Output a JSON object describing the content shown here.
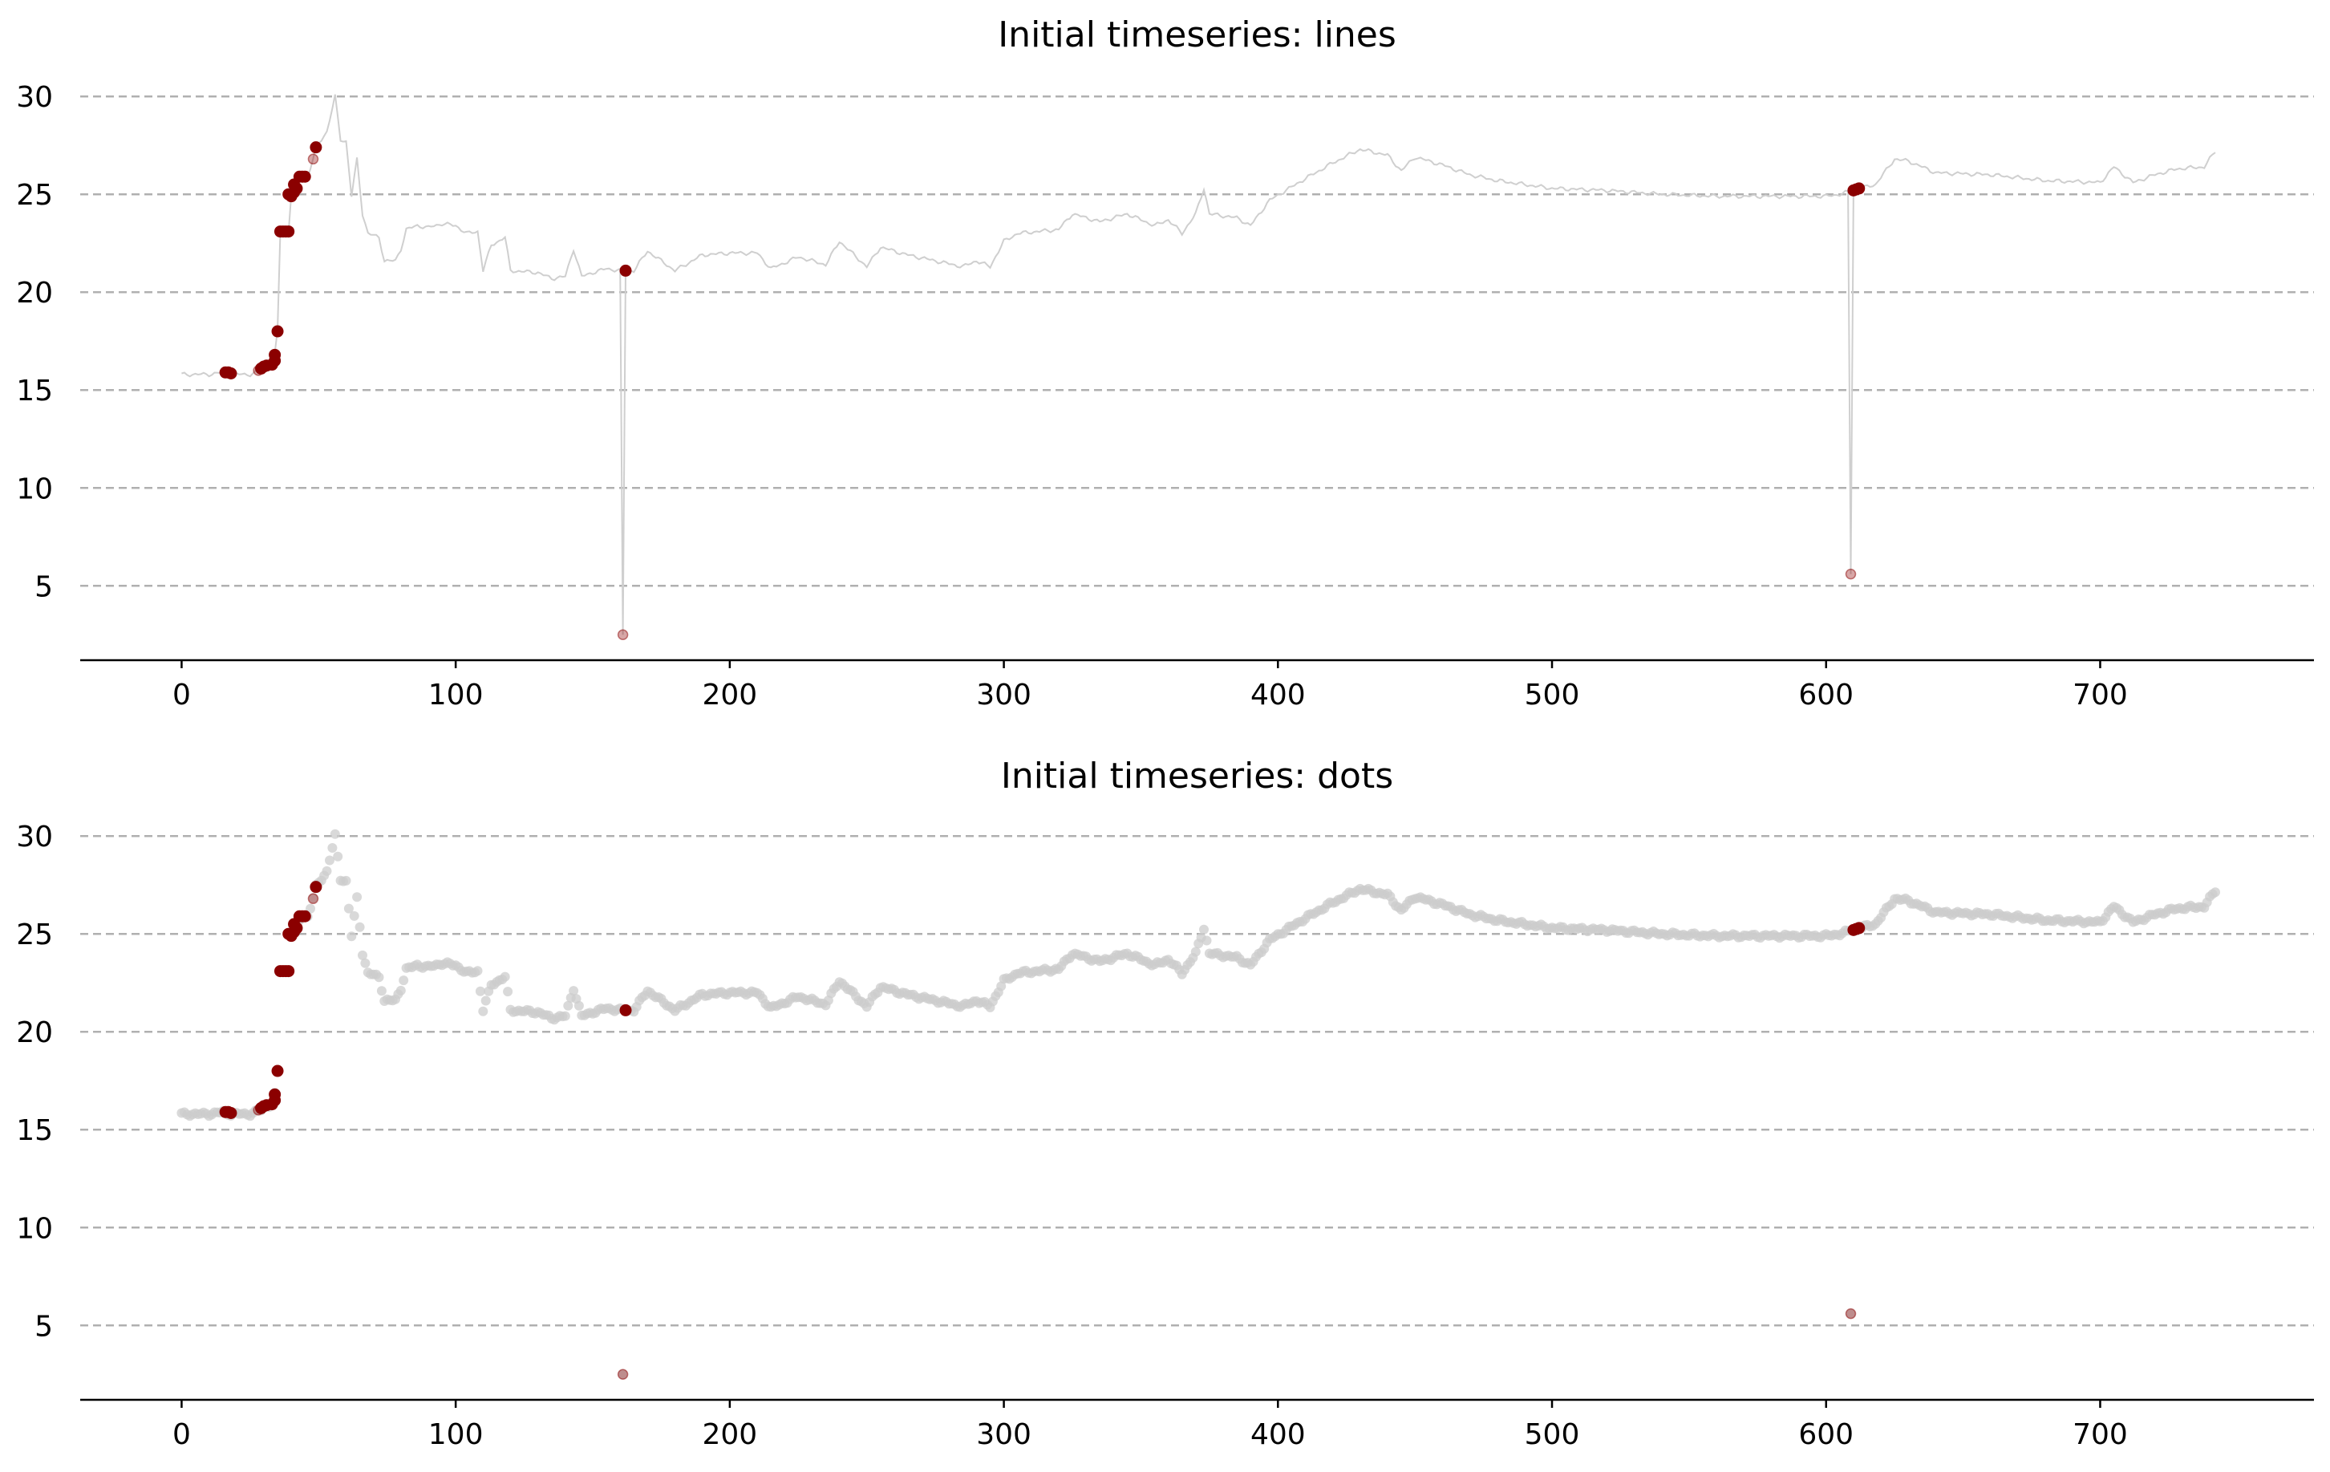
{
  "chart_data": [
    {
      "type": "line",
      "title": "Initial timeseries: lines",
      "xlabel": "",
      "ylabel": "",
      "xlim": [
        -37,
        778
      ],
      "ylim": [
        1.2,
        30.5
      ],
      "xticks": [
        0,
        100,
        200,
        300,
        400,
        500,
        600,
        700
      ],
      "yticks": [
        5,
        10,
        15,
        20,
        25,
        30
      ],
      "grid": "horizontal-dashed",
      "series_color": "#cccccc",
      "highlight_color": "#8b0000"
    },
    {
      "type": "scatter",
      "title": "Initial timeseries: dots",
      "xlabel": "",
      "ylabel": "",
      "xlim": [
        -37,
        778
      ],
      "ylim": [
        1.2,
        30.5
      ],
      "xticks": [
        0,
        100,
        200,
        300,
        400,
        500,
        600,
        700
      ],
      "yticks": [
        5,
        10,
        15,
        20,
        25,
        30
      ],
      "grid": "horizontal-dashed",
      "series_color": "#cccccc",
      "highlight_color": "#8b0000"
    }
  ],
  "series": {
    "x_end": 742,
    "anchors": [
      [
        0,
        15.8
      ],
      [
        10,
        15.8
      ],
      [
        15,
        15.9
      ],
      [
        18,
        15.8
      ],
      [
        25,
        15.8
      ],
      [
        29,
        16.0
      ],
      [
        31,
        16.2
      ],
      [
        33,
        16.3
      ],
      [
        34,
        16.8
      ],
      [
        35,
        18.0
      ],
      [
        36,
        23.1
      ],
      [
        39,
        23.1
      ],
      [
        40,
        25.0
      ],
      [
        42,
        25.5
      ],
      [
        44,
        25.9
      ],
      [
        46,
        25.9
      ],
      [
        48,
        26.8
      ],
      [
        49,
        27.4
      ],
      [
        51,
        27.8
      ],
      [
        53,
        28.2
      ],
      [
        56,
        30.0
      ],
      [
        58,
        27.8
      ],
      [
        60,
        27.7
      ],
      [
        62,
        24.9
      ],
      [
        64,
        26.8
      ],
      [
        66,
        24.0
      ],
      [
        68,
        23.0
      ],
      [
        72,
        22.8
      ],
      [
        74,
        21.6
      ],
      [
        78,
        21.6
      ],
      [
        80,
        22.2
      ],
      [
        82,
        23.2
      ],
      [
        86,
        23.4
      ],
      [
        90,
        23.3
      ],
      [
        95,
        23.5
      ],
      [
        100,
        23.4
      ],
      [
        104,
        23.0
      ],
      [
        108,
        23.1
      ],
      [
        110,
        21.1
      ],
      [
        113,
        22.4
      ],
      [
        118,
        22.8
      ],
      [
        120,
        21.1
      ],
      [
        130,
        21.0
      ],
      [
        135,
        20.7
      ],
      [
        140,
        20.8
      ],
      [
        143,
        22.2
      ],
      [
        146,
        20.8
      ],
      [
        150,
        21.0
      ],
      [
        155,
        21.2
      ],
      [
        160,
        21.1
      ],
      [
        165,
        21.1
      ],
      [
        170,
        22.1
      ],
      [
        175,
        21.6
      ],
      [
        180,
        21.1
      ],
      [
        190,
        21.9
      ],
      [
        200,
        22.0
      ],
      [
        210,
        22.0
      ],
      [
        215,
        21.2
      ],
      [
        225,
        21.8
      ],
      [
        235,
        21.4
      ],
      [
        240,
        22.6
      ],
      [
        250,
        21.3
      ],
      [
        255,
        22.3
      ],
      [
        265,
        21.9
      ],
      [
        275,
        21.6
      ],
      [
        285,
        21.3
      ],
      [
        290,
        21.6
      ],
      [
        295,
        21.3
      ],
      [
        300,
        22.6
      ],
      [
        305,
        23.0
      ],
      [
        320,
        23.2
      ],
      [
        325,
        24.0
      ],
      [
        335,
        23.6
      ],
      [
        345,
        24.0
      ],
      [
        355,
        23.4
      ],
      [
        360,
        23.7
      ],
      [
        365,
        23.0
      ],
      [
        370,
        24.0
      ],
      [
        373,
        25.3
      ],
      [
        375,
        24.0
      ],
      [
        385,
        23.8
      ],
      [
        390,
        23.4
      ],
      [
        397,
        24.7
      ],
      [
        410,
        25.8
      ],
      [
        420,
        26.6
      ],
      [
        430,
        27.3
      ],
      [
        440,
        27.0
      ],
      [
        445,
        26.2
      ],
      [
        450,
        26.9
      ],
      [
        460,
        26.5
      ],
      [
        470,
        26.0
      ],
      [
        480,
        25.7
      ],
      [
        500,
        25.3
      ],
      [
        520,
        25.2
      ],
      [
        540,
        25.0
      ],
      [
        560,
        24.9
      ],
      [
        580,
        24.9
      ],
      [
        600,
        24.9
      ],
      [
        605,
        25.0
      ],
      [
        610,
        25.2
      ],
      [
        618,
        25.5
      ],
      [
        625,
        26.8
      ],
      [
        630,
        26.7
      ],
      [
        640,
        26.1
      ],
      [
        660,
        26.0
      ],
      [
        680,
        25.7
      ],
      [
        700,
        25.6
      ],
      [
        705,
        26.4
      ],
      [
        712,
        25.6
      ],
      [
        720,
        26.0
      ],
      [
        728,
        26.3
      ],
      [
        738,
        26.4
      ],
      [
        742,
        27.2
      ]
    ],
    "dips": [
      {
        "x": 161,
        "y": 2.5
      },
      {
        "x": 609,
        "y": 5.6
      }
    ]
  },
  "highlights": {
    "strong": [
      [
        16,
        15.9
      ],
      [
        17,
        15.9
      ],
      [
        18,
        15.85
      ],
      [
        29,
        16.1
      ],
      [
        30,
        16.2
      ],
      [
        31,
        16.25
      ],
      [
        33,
        16.3
      ],
      [
        34,
        16.5
      ],
      [
        34,
        16.8
      ],
      [
        35,
        18.0
      ],
      [
        36,
        23.1
      ],
      [
        37,
        23.1
      ],
      [
        38,
        23.1
      ],
      [
        39,
        23.1
      ],
      [
        39,
        25.0
      ],
      [
        40,
        24.9
      ],
      [
        41,
        25.1
      ],
      [
        41,
        25.5
      ],
      [
        42,
        25.3
      ],
      [
        43,
        25.9
      ],
      [
        44,
        25.9
      ],
      [
        45,
        25.9
      ],
      [
        49,
        27.4
      ],
      [
        162,
        21.1
      ],
      [
        610,
        25.2
      ],
      [
        611,
        25.25
      ],
      [
        612,
        25.3
      ]
    ],
    "faint": [
      [
        28,
        16.0
      ],
      [
        48,
        26.8
      ],
      [
        161,
        2.5
      ],
      [
        609,
        5.6
      ]
    ]
  }
}
